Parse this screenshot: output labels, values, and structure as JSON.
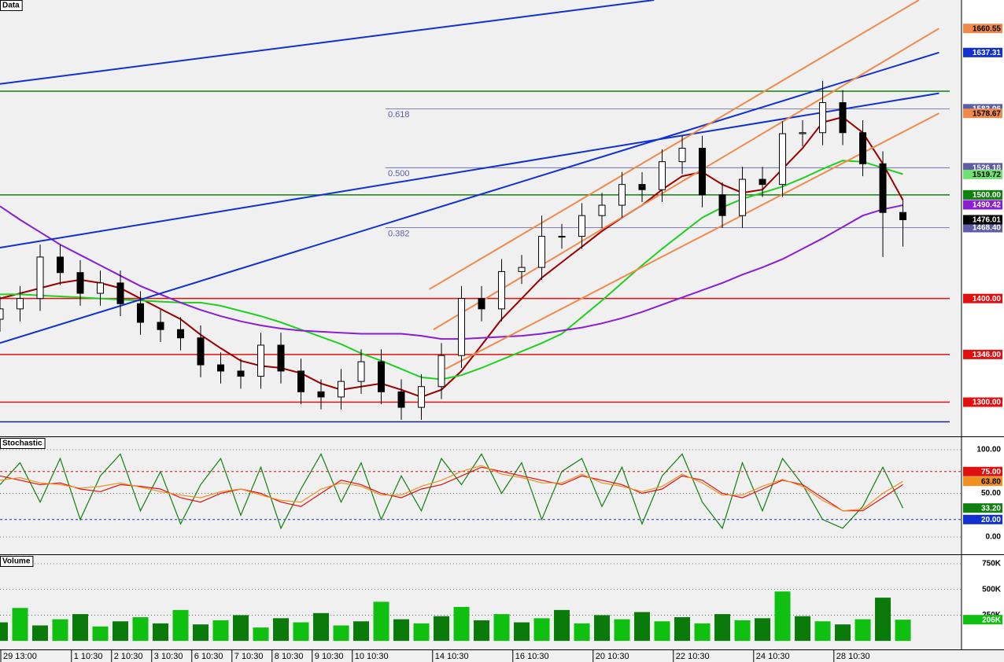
{
  "chart_data": [
    {
      "type": "candlestick",
      "title": "Data",
      "x": [
        0,
        0.5,
        1,
        1.5,
        2,
        2.5,
        3,
        3.5,
        4,
        4.5,
        5,
        5.5,
        6,
        6.5,
        7,
        7.5,
        8,
        8.5,
        9,
        9.5,
        10,
        10.5,
        11,
        11.5,
        12,
        12.5,
        13,
        13.5,
        14,
        14.5,
        15,
        15.5,
        16,
        16.5,
        17,
        17.5,
        18,
        18.5,
        19,
        19.5,
        20,
        20.5,
        21,
        21.5,
        22,
        22.5
      ],
      "open": [
        1380,
        1390,
        1400,
        1440,
        1425,
        1405,
        1415,
        1395,
        1377,
        1370,
        1362,
        1336,
        1330,
        1325,
        1355,
        1330,
        1310,
        1305,
        1320,
        1339,
        1310,
        1295,
        1315,
        1345,
        1400,
        1390,
        1426,
        1430,
        1460,
        1460,
        1480,
        1490,
        1510,
        1505,
        1532,
        1545,
        1500,
        1480,
        1515,
        1510,
        1559,
        1560,
        1589,
        1560,
        1530,
        1483
      ],
      "high": [
        1402,
        1412,
        1452,
        1452,
        1437,
        1427,
        1427,
        1407,
        1389,
        1382,
        1374,
        1348,
        1342,
        1367,
        1367,
        1342,
        1322,
        1332,
        1351,
        1351,
        1322,
        1327,
        1357,
        1412,
        1412,
        1438,
        1442,
        1480,
        1472,
        1492,
        1502,
        1522,
        1522,
        1544,
        1557,
        1557,
        1512,
        1527,
        1527,
        1571,
        1572,
        1610,
        1601,
        1572,
        1542,
        1495
      ],
      "low": [
        1368,
        1378,
        1388,
        1413,
        1393,
        1393,
        1383,
        1365,
        1358,
        1350,
        1324,
        1318,
        1313,
        1313,
        1318,
        1298,
        1293,
        1293,
        1308,
        1298,
        1283,
        1283,
        1303,
        1333,
        1378,
        1378,
        1414,
        1418,
        1448,
        1448,
        1468,
        1478,
        1493,
        1493,
        1520,
        1488,
        1468,
        1468,
        1498,
        1498,
        1547,
        1548,
        1548,
        1518,
        1440,
        1450
      ],
      "close": [
        1390,
        1400,
        1440,
        1425,
        1405,
        1415,
        1395,
        1377,
        1370,
        1362,
        1336,
        1330,
        1325,
        1355,
        1330,
        1310,
        1305,
        1320,
        1339,
        1310,
        1295,
        1315,
        1345,
        1400,
        1390,
        1426,
        1430,
        1460,
        1460,
        1480,
        1490,
        1510,
        1505,
        1532,
        1545,
        1500,
        1480,
        1515,
        1510,
        1559,
        1560,
        1589,
        1560,
        1530,
        1483,
        1476
      ],
      "series": [
        {
          "color": "#9b0000",
          "values": [
            1400,
            1405,
            1410,
            1415,
            1418,
            1415,
            1410,
            1400,
            1390,
            1380,
            1365,
            1352,
            1340,
            1335,
            1333,
            1328,
            1318,
            1312,
            1315,
            1318,
            1312,
            1305,
            1312,
            1330,
            1355,
            1380,
            1400,
            1420,
            1435,
            1450,
            1465,
            1478,
            1490,
            1505,
            1518,
            1522,
            1510,
            1502,
            1505,
            1525,
            1545,
            1570,
            1575,
            1560,
            1530,
            1495
          ]
        },
        {
          "color": "#20d020",
          "values": [
            1404,
            1404,
            1403,
            1402,
            1401,
            1400,
            1399,
            1398,
            1397,
            1396,
            1396,
            1393,
            1388,
            1383,
            1377,
            1370,
            1363,
            1356,
            1347,
            1340,
            1332,
            1324,
            1322,
            1326,
            1333,
            1341,
            1349,
            1357,
            1366,
            1382,
            1398,
            1415,
            1432,
            1448,
            1463,
            1478,
            1488,
            1496,
            1502,
            1508,
            1516,
            1525,
            1533,
            1532,
            1526,
            1520
          ]
        },
        {
          "color": "#8a1ed0",
          "values": [
            1489,
            1476,
            1464,
            1452,
            1442,
            1432,
            1422,
            1412,
            1404,
            1396,
            1389,
            1383,
            1378,
            1374,
            1371,
            1369,
            1368,
            1367,
            1366,
            1366,
            1366,
            1364,
            1361,
            1361,
            1362,
            1363,
            1364,
            1366,
            1369,
            1372,
            1376,
            1381,
            1387,
            1394,
            1401,
            1408,
            1415,
            1423,
            1430,
            1438,
            1448,
            1458,
            1469,
            1480,
            1486,
            1490
          ]
        }
      ],
      "lines": [
        {
          "color": "#1030d0",
          "x": [
            0,
            16.3
          ],
          "y": [
            1607,
            1688
          ]
        },
        {
          "color": "#1030d0",
          "x": [
            0,
            23.4
          ],
          "y": [
            1449,
            1598
          ]
        },
        {
          "color": "#1030d0",
          "x": [
            0,
            23.4
          ],
          "y": [
            1357,
            1637.31
          ]
        },
        {
          "color": "#f08a4b",
          "x": [
            10.7,
            22.9
          ],
          "y": [
            1409,
            1688
          ]
        },
        {
          "color": "#f08a4b",
          "x": [
            10.8,
            23.4
          ],
          "y": [
            1370,
            1660.55
          ]
        },
        {
          "color": "#f08a4b",
          "x": [
            11.1,
            23.4
          ],
          "y": [
            1332,
            1578.67
          ]
        }
      ],
      "levels": [
        {
          "value": 1600,
          "color": "#108010"
        },
        {
          "value": 1500,
          "label": "1500.00",
          "color": "#108010"
        },
        {
          "value": 1400,
          "label": "1400.00",
          "color": "#e01010"
        },
        {
          "value": 1346,
          "label": "1346.00",
          "color": "#e01010"
        },
        {
          "value": 1300,
          "label": "1300.00",
          "color": "#e01010"
        },
        {
          "value": 1281,
          "color": "#202080"
        }
      ],
      "fib": [
        {
          "ratio": 0.618,
          "value": 1583.06
        },
        {
          "ratio": {
            "value": 0.5,
            "label": "0.500"
          },
          "value": 1526.18
        },
        {
          "ratio": 0.382,
          "value": 1468.4,
          "label": "1468.40"
        }
      ],
      "fib_color": "#5c5ca8",
      "price_labels": [
        {
          "value": 1660.55,
          "color": "#f08a4b"
        },
        {
          "value": 1637.31,
          "color": "#1030d0"
        },
        {
          "value": 1578.67,
          "color": "#f08a4b"
        },
        {
          "value": 1519.72,
          "color": "#70e070"
        },
        {
          "value": 1490.42,
          "color": "#8a1ed0"
        },
        {
          "value": 1476.01,
          "color": "#000000"
        }
      ],
      "xlim": [
        0,
        23.96
      ],
      "ylim": [
        1267,
        1688
      ]
    },
    {
      "type": "line",
      "title": "Stochastic",
      "x": [
        0,
        0.5,
        1,
        1.5,
        2,
        2.5,
        3,
        3.5,
        4,
        4.5,
        5,
        5.5,
        6,
        6.5,
        7,
        7.5,
        8,
        8.5,
        9,
        9.5,
        10,
        10.5,
        11,
        11.5,
        12,
        12.5,
        13,
        13.5,
        14,
        14.5,
        15,
        15.5,
        16,
        16.5,
        17,
        17.5,
        18,
        18.5,
        19,
        19.5,
        20,
        20.5,
        21,
        21.5,
        22,
        22.5
      ],
      "series": [
        {
          "color": "#108010",
          "values": [
            60,
            85,
            40,
            90,
            20,
            70,
            95,
            30,
            75,
            15,
            60,
            90,
            25,
            80,
            10,
            55,
            95,
            40,
            85,
            20,
            70,
            30,
            90,
            60,
            95,
            50,
            85,
            20,
            75,
            90,
            35,
            80,
            15,
            70,
            95,
            40,
            10,
            85,
            30,
            90,
            60,
            20,
            10,
            35,
            80,
            33.2
          ]
        },
        {
          "color": "#e01010",
          "values": [
            70,
            65,
            60,
            62,
            55,
            52,
            60,
            58,
            55,
            45,
            40,
            50,
            55,
            50,
            40,
            35,
            50,
            65,
            60,
            50,
            45,
            55,
            60,
            70,
            80,
            75,
            70,
            65,
            60,
            70,
            65,
            60,
            50,
            55,
            70,
            65,
            50,
            45,
            55,
            65,
            60,
            45,
            30,
            30,
            45,
            60
          ]
        },
        {
          "color": "#f09020",
          "values": [
            65,
            68,
            62,
            60,
            56,
            58,
            62,
            57,
            52,
            48,
            45,
            52,
            55,
            48,
            42,
            40,
            55,
            62,
            58,
            48,
            48,
            58,
            65,
            75,
            82,
            72,
            68,
            62,
            62,
            72,
            62,
            58,
            52,
            58,
            72,
            62,
            48,
            48,
            58,
            66,
            58,
            42,
            30,
            32,
            50,
            63.8
          ]
        }
      ],
      "levels": [
        {
          "value": 75,
          "label": "75.00",
          "color": "#e01010"
        },
        {
          "value": 20,
          "label": "20.00",
          "color": "#1030d0"
        }
      ],
      "price_labels": [
        {
          "value": 63.8,
          "label": "63.80",
          "color": "#f09020"
        },
        {
          "value": 33.2,
          "label": "33.20",
          "color": "#108010"
        }
      ],
      "xlim": [
        0,
        23.96
      ],
      "ylim": [
        -19.8,
        113.5
      ],
      "yticks": [
        {
          "value": 0,
          "label": "0.00"
        },
        {
          "value": 50,
          "label": "50.00"
        },
        {
          "value": 100,
          "label": "100.00"
        }
      ],
      "grid": true
    },
    {
      "type": "bar",
      "title": "Volume",
      "x": [
        0,
        0.5,
        1,
        1.5,
        2,
        2.5,
        3,
        3.5,
        4,
        4.5,
        5,
        5.5,
        6,
        6.5,
        7,
        7.5,
        8,
        8.5,
        9,
        9.5,
        10,
        10.5,
        11,
        11.5,
        12,
        12.5,
        13,
        13.5,
        14,
        14.5,
        15,
        15.5,
        16,
        16.5,
        17,
        17.5,
        18,
        18.5,
        19,
        19.5,
        20,
        20.5,
        21,
        21.5,
        22,
        22.5
      ],
      "values": [
        180000,
        320000,
        150000,
        210000,
        260000,
        140000,
        190000,
        230000,
        170000,
        300000,
        160000,
        200000,
        250000,
        130000,
        220000,
        180000,
        270000,
        150000,
        190000,
        380000,
        210000,
        170000,
        240000,
        330000,
        200000,
        260000,
        180000,
        220000,
        300000,
        170000,
        250000,
        210000,
        280000,
        190000,
        230000,
        170000,
        260000,
        200000,
        220000,
        480000,
        240000,
        190000,
        160000,
        210000,
        420000,
        206000
      ],
      "color": "#10c010",
      "price_labels": [
        {
          "value": 206000,
          "label": "206K",
          "color": "#10c010"
        }
      ],
      "xlim": [
        0,
        23.96
      ],
      "ylim": [
        -83000,
        826000
      ],
      "yticks": [
        {
          "value": 250000,
          "label": "250K"
        },
        {
          "value": 500000,
          "label": "500K"
        },
        {
          "value": 750000,
          "label": "750K"
        }
      ],
      "grid": true,
      "xticks": [
        {
          "value": 0,
          "label": "29 13:00"
        },
        {
          "value": 1.76,
          "label": "1 10:30"
        },
        {
          "value": 2.76,
          "label": "2 10:30"
        },
        {
          "value": 3.76,
          "label": "3 10:30"
        },
        {
          "value": 4.76,
          "label": "6 10:30"
        },
        {
          "value": 5.76,
          "label": "7 10:30"
        },
        {
          "value": 6.76,
          "label": "8 10:30"
        },
        {
          "value": 7.76,
          "label": "9 10:30"
        },
        {
          "value": 8.76,
          "label": "10 10:30"
        },
        {
          "value": 10.76,
          "label": "14 10:30"
        },
        {
          "value": 12.76,
          "label": "16 10:30"
        },
        {
          "value": 14.76,
          "label": "20 10:30"
        },
        {
          "value": 16.76,
          "label": "22 10:30"
        },
        {
          "value": 18.76,
          "label": "24 10:30"
        },
        {
          "value": 20.76,
          "label": "28 10:30"
        }
      ]
    }
  ]
}
